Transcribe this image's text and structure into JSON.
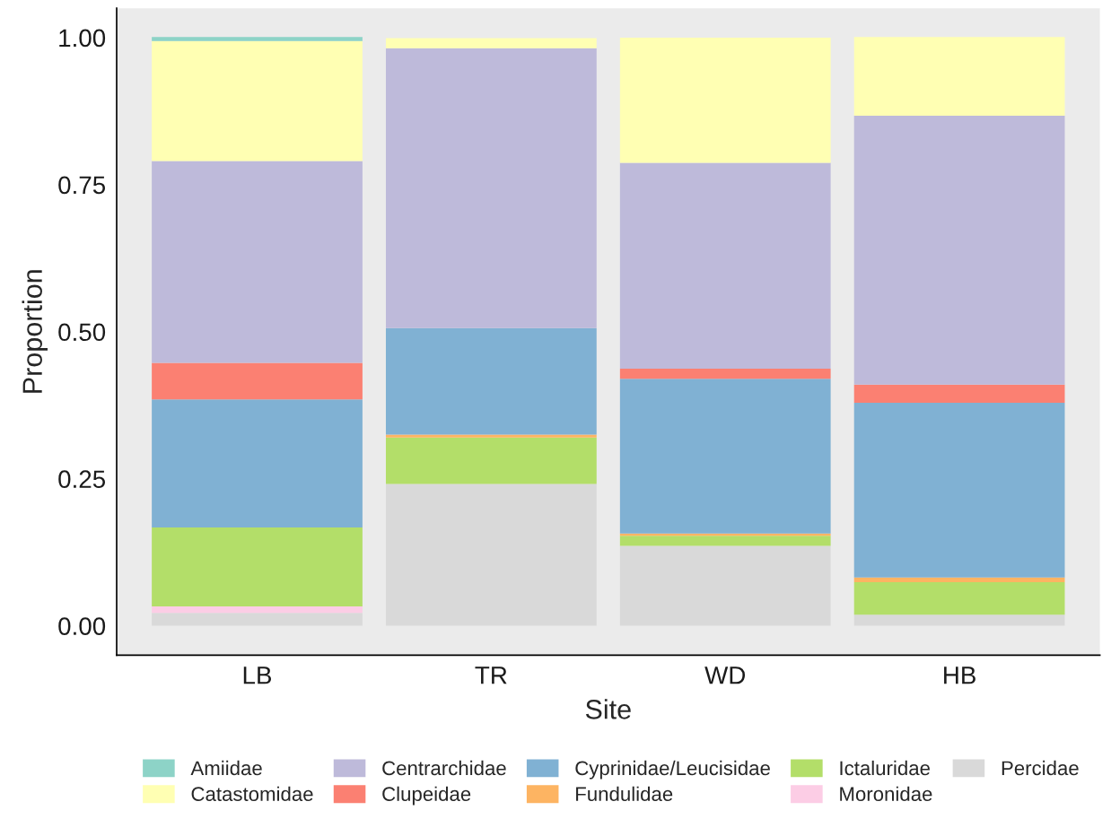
{
  "chart_data": {
    "type": "bar",
    "stacked": true,
    "xlabel": "Site",
    "ylabel": "Proportion",
    "categories": [
      "LB",
      "TR",
      "WD",
      "HB"
    ],
    "series": [
      {
        "name": "Percidae",
        "color": "#d9d9d9",
        "values": [
          0.022,
          0.241,
          0.136,
          0.019
        ]
      },
      {
        "name": "Moronidae",
        "color": "#fccde5",
        "values": [
          0.011,
          0,
          0,
          0
        ]
      },
      {
        "name": "Ictaluridae",
        "color": "#b3de69",
        "values": [
          0.134,
          0.079,
          0.017,
          0.055
        ]
      },
      {
        "name": "Fundulidae",
        "color": "#fdb462",
        "values": [
          0,
          0.005,
          0.004,
          0.008
        ]
      },
      {
        "name": "Cyprinidae/Leucisidae",
        "color": "#80b1d3",
        "values": [
          0.218,
          0.181,
          0.263,
          0.297
        ]
      },
      {
        "name": "Clupeidae",
        "color": "#fb8072",
        "values": [
          0.062,
          0,
          0.017,
          0.031
        ]
      },
      {
        "name": "Centrarchidae",
        "color": "#bebada",
        "values": [
          0.343,
          0.476,
          0.35,
          0.457
        ]
      },
      {
        "name": "Catastomidae",
        "color": "#ffffb3",
        "values": [
          0.204,
          0.017,
          0.213,
          0.134
        ]
      },
      {
        "name": "Amiidae",
        "color": "#8dd3c7",
        "values": [
          0.007,
          0,
          0,
          0
        ]
      }
    ],
    "ylim": [
      -0.05,
      1.05
    ],
    "yticks": [
      {
        "value": 0,
        "label": "0.00"
      },
      {
        "value": 0.25,
        "label": "0.25"
      },
      {
        "value": 0.5,
        "label": "0.50"
      },
      {
        "value": 0.75,
        "label": "0.75"
      },
      {
        "value": 1,
        "label": "1.00"
      }
    ],
    "grid": false,
    "legend": "bottom"
  }
}
